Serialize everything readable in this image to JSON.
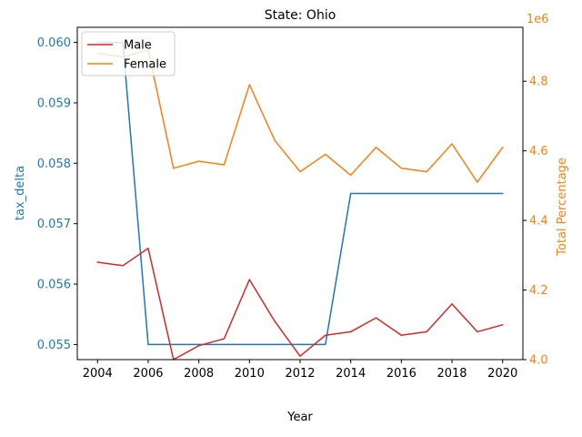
{
  "chart_data": {
    "type": "line",
    "title": "State: Ohio",
    "xlabel": "Year",
    "ylabel_left": "tax_delta",
    "ylabel_right": "Total Percentage",
    "right_axis_offset_label": "1e6",
    "grid": false,
    "legend_position": "top-left",
    "x": [
      2004,
      2005,
      2006,
      2007,
      2008,
      2009,
      2010,
      2011,
      2012,
      2013,
      2014,
      2015,
      2016,
      2017,
      2018,
      2019,
      2020
    ],
    "xlim": [
      2003.2,
      2020.8
    ],
    "x_ticks": [
      2004,
      2006,
      2008,
      2010,
      2012,
      2014,
      2016,
      2018,
      2020
    ],
    "left_axis": {
      "ylim": [
        0.05475,
        0.06025
      ],
      "ticks": [
        0.055,
        0.056,
        0.057,
        0.058,
        0.059,
        0.06
      ],
      "tick_labels": [
        "0.055",
        "0.056",
        "0.057",
        "0.058",
        "0.059",
        "0.060"
      ],
      "color": "#1f77b4",
      "series": [
        {
          "color": "#1f77b4",
          "values": [
            0.06,
            0.06,
            0.055,
            0.055,
            0.055,
            0.055,
            0.055,
            0.055,
            0.055,
            0.055,
            0.0575,
            0.0575,
            0.0575,
            0.0575,
            0.0575,
            0.0575,
            0.0575
          ]
        }
      ]
    },
    "right_axis": {
      "ylim": [
        4.0,
        4.955
      ],
      "ticks": [
        4.0,
        4.2,
        4.4,
        4.6,
        4.8
      ],
      "tick_labels": [
        "4.0",
        "4.2",
        "4.4",
        "4.6",
        "4.8"
      ],
      "color": "#ff7f0e",
      "series": [
        {
          "name": "Male",
          "color": "#d62728",
          "values": [
            4.28,
            4.27,
            4.32,
            4.0,
            4.04,
            4.06,
            4.23,
            4.11,
            4.01,
            4.07,
            4.08,
            4.12,
            4.07,
            4.08,
            4.16,
            4.08,
            4.1
          ]
        },
        {
          "name": "Female",
          "color": "#ff7f0e",
          "values": [
            4.88,
            4.87,
            4.89,
            4.55,
            4.57,
            4.56,
            4.79,
            4.63,
            4.54,
            4.59,
            4.53,
            4.61,
            4.55,
            4.54,
            4.62,
            4.51,
            4.61
          ]
        }
      ]
    }
  }
}
